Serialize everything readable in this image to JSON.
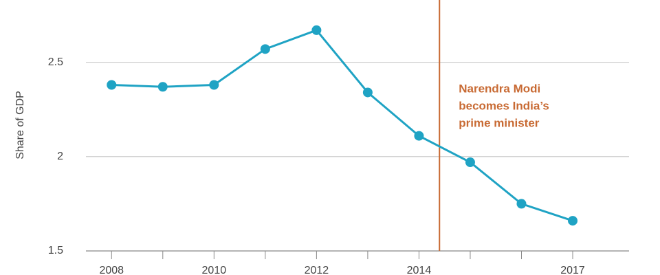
{
  "chart_data": {
    "type": "line",
    "y_label": "Share of GDP",
    "x": [
      2008,
      2009,
      2010,
      2011,
      2012,
      2013,
      2014,
      2015,
      2016,
      2017
    ],
    "series": [
      {
        "color": "#1fa3c4",
        "values": [
          2.38,
          2.37,
          2.38,
          2.57,
          2.67,
          2.34,
          2.11,
          1.97,
          1.75,
          1.66
        ]
      }
    ],
    "xlim": [
      2007.5,
      2018.1
    ],
    "xticks": [
      2008,
      2010,
      2012,
      2014,
      2017
    ],
    "xminorticks": [
      2009,
      2011,
      2013,
      2015,
      2016
    ],
    "ylim": [
      1.5,
      2.83
    ],
    "yticks": [
      1.5,
      2,
      2.5
    ],
    "grid": true,
    "annotation": {
      "x": 2014.4,
      "color": "#c86a33",
      "lines": [
        "Narendra Modi",
        "becomes India’s",
        "prime minister"
      ]
    }
  }
}
